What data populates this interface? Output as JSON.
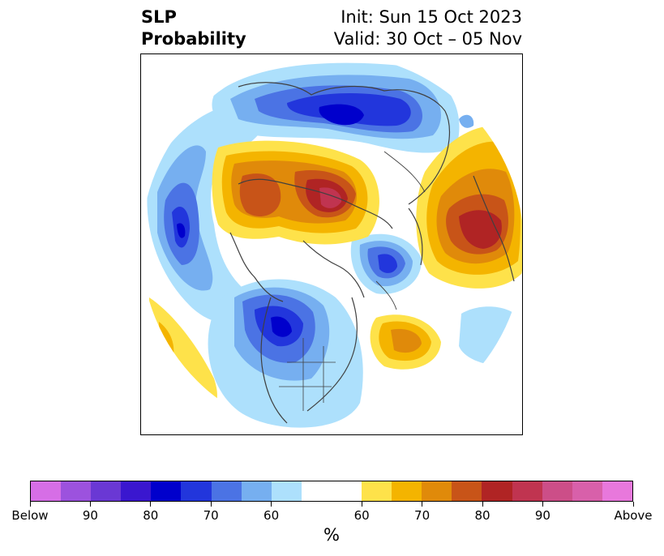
{
  "title": {
    "left_line1": "SLP",
    "left_line2": "Probability",
    "right_line1": "Init: Sun 15 Oct 2023",
    "right_line2": "Valid: 30 Oct – 05 Nov"
  },
  "colorbar": {
    "unit": "%",
    "below_colors": [
      "#d66ee6",
      "#9c52de",
      "#6a38d4",
      "#3a17cf",
      "#0000cc",
      "#2236dc",
      "#4b73e4",
      "#76aff0",
      "#ade0fc"
    ],
    "neutral_color": "#ffffff",
    "above_colors": [
      "#fee24a",
      "#f4b400",
      "#e08a0a",
      "#c85418",
      "#b02424",
      "#c03450",
      "#cc4e88",
      "#d860aa",
      "#e878dc"
    ],
    "tick_labels": [
      "Below",
      "90",
      "80",
      "70",
      "60",
      "60",
      "70",
      "80",
      "90",
      "Above"
    ]
  },
  "map": {
    "projection": "north-polar-stereographic",
    "icon": "sea-level-pressure-probability-map"
  }
}
